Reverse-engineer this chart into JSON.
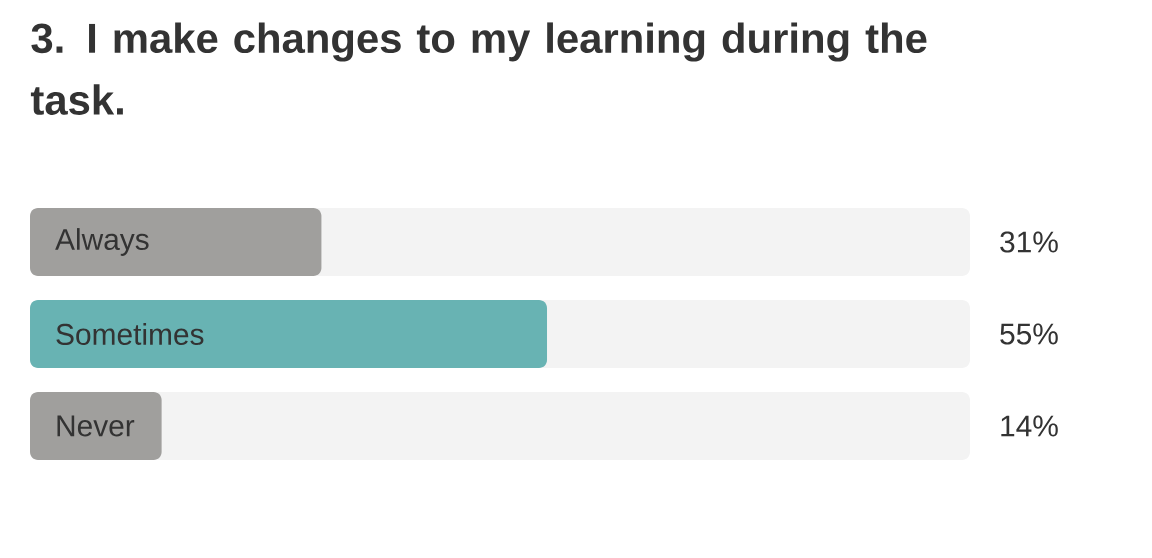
{
  "chart_data": {
    "type": "bar",
    "orientation": "horizontal",
    "title": "3. I make changes to my learning during the task.",
    "categories": [
      "Always",
      "Sometimes",
      "Never"
    ],
    "values": [
      31,
      55,
      14
    ],
    "colors": [
      "#a09f9d",
      "#68b3b3",
      "#a09f9d"
    ],
    "value_labels": [
      "31%",
      "55%",
      "14%"
    ],
    "xlim": [
      0,
      100
    ]
  }
}
